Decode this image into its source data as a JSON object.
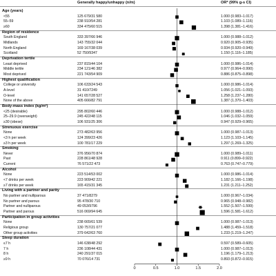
{
  "header": {
    "counts": "Generally happy/unhappy (n/m)",
    "or": "OR* (99% g-s CI)"
  },
  "chart_data": {
    "type": "forest",
    "x_ticks": [
      "0",
      "0.5",
      "1.0",
      "1.5",
      "2.0"
    ],
    "xlim": [
      0,
      2
    ],
    "reference_line": 1,
    "rows": [
      {
        "kind": "section",
        "label": "Age (years)"
      },
      {
        "kind": "row",
        "label": "<55",
        "counts": "125 679/31 580",
        "or_text": "1.000 (0.983–1.017)",
        "or": 1.0,
        "lo": 0.983,
        "hi": 1.017
      },
      {
        "kind": "row",
        "label": "55–59",
        "counts": "238 910/54 281",
        "or_text": "1.103 (1.089–1.116)",
        "or": 1.103,
        "lo": 1.089,
        "hi": 1.116
      },
      {
        "kind": "row",
        "label": "≥60",
        "counts": "334 475/60 515",
        "or_text": "1.398 (1.381–1.416)",
        "or": 1.398,
        "lo": 1.381,
        "hi": 1.416
      },
      {
        "kind": "section",
        "label": "Region of residence"
      },
      {
        "kind": "row",
        "label": "South England",
        "counts": "333 397/66 946",
        "or_text": "1.000 (0.988–1.012)",
        "or": 1.0,
        "lo": 0.988,
        "hi": 1.012
      },
      {
        "kind": "row",
        "label": "Midlands",
        "counts": "143 755/32 044",
        "or_text": "0.920 (0.905–0.935)",
        "or": 0.92,
        "lo": 0.905,
        "hi": 0.935
      },
      {
        "kind": "row",
        "label": "North England",
        "counts": "169 167/38 039",
        "or_text": "0.934 (0.920–0.949)",
        "or": 0.934,
        "lo": 0.92,
        "hi": 0.949
      },
      {
        "kind": "row",
        "label": "Scotland",
        "counts": "52 750/9347",
        "or_text": "1.150 (1.116–1.185)",
        "or": 1.15,
        "lo": 1.116,
        "hi": 1.185
      },
      {
        "kind": "section",
        "label": "Deprivation tertile"
      },
      {
        "kind": "row",
        "label": "Least deprived",
        "counts": "237 815/44 104",
        "or_text": "1.000 (0.986–1.014)",
        "or": 1.0,
        "lo": 0.986,
        "hi": 1.014
      },
      {
        "kind": "row",
        "label": "Middle tertile",
        "counts": "234 121/46 382",
        "or_text": "0.977 (0.964–0.990)",
        "or": 0.977,
        "lo": 0.964,
        "hi": 0.99
      },
      {
        "kind": "row",
        "label": "Most deprived",
        "counts": "221 743/54 909",
        "or_text": "0.886 (0.875–0.898)",
        "or": 0.886,
        "lo": 0.875,
        "hi": 0.898
      },
      {
        "kind": "section",
        "label": "Highest qualification"
      },
      {
        "kind": "row",
        "label": "College or university",
        "counts": "106 633/24 543",
        "or_text": "1.000 (0.986–1.014)",
        "or": 1.0,
        "lo": 0.986,
        "hi": 1.014
      },
      {
        "kind": "row",
        "label": "A-level",
        "counts": "31 410/7249",
        "or_text": "1.056 (1.021–1.093)",
        "or": 1.056,
        "lo": 1.021,
        "hi": 1.093
      },
      {
        "kind": "row",
        "label": "O-level",
        "counts": "141 657/28 527",
        "or_text": "1.258 (1.237–1.280)",
        "or": 1.258,
        "lo": 1.237,
        "hi": 1.28
      },
      {
        "kind": "row",
        "label": "None of the above",
        "counts": "405 666/82 791",
        "or_text": "1.387 (1.370–1.403)",
        "or": 1.387,
        "lo": 1.37,
        "hi": 1.403
      },
      {
        "kind": "section",
        "label": "Body-mass index (kg/m²)"
      },
      {
        "kind": "row",
        "label": "<25 (desirable)",
        "counts": "295 802/60 446",
        "or_text": "1.000 (0.988–1.012)",
        "or": 1.0,
        "lo": 0.988,
        "hi": 1.012
      },
      {
        "kind": "row",
        "label": "25–29.9 (overweight)",
        "counts": "245 422/48 115",
        "or_text": "1.046 (1.032–1.059)",
        "or": 1.046,
        "lo": 1.032,
        "hi": 1.059
      },
      {
        "kind": "row",
        "label": "≥30 (obese)",
        "counts": "106 931/25 306",
        "or_text": "0.947 (0.929–0.965)",
        "or": 0.947,
        "lo": 0.929,
        "hi": 0.965
      },
      {
        "kind": "section",
        "label": "Strenuous exercise"
      },
      {
        "kind": "row",
        "label": "None",
        "counts": "273 482/63 956",
        "or_text": "1.000 (0.987–1.013)",
        "or": 1.0,
        "lo": 0.987,
        "hi": 1.013
      },
      {
        "kind": "row",
        "label": "<3 h per week",
        "counts": "124 399/23 426",
        "or_text": "1.123 (1.103–1.145)",
        "or": 1.123,
        "lo": 1.103,
        "hi": 1.145
      },
      {
        "kind": "row",
        "label": "≥3 h per week",
        "counts": "100 781/17 229",
        "or_text": "1.297 (1.269–1.325)",
        "or": 1.297,
        "lo": 1.269,
        "hi": 1.325
      },
      {
        "kind": "section",
        "label": "Smoking"
      },
      {
        "kind": "row",
        "label": "Never",
        "counts": "376 956/70 874",
        "or_text": "1.000 (0.989–1.011)",
        "or": 1.0,
        "lo": 0.989,
        "hi": 1.011
      },
      {
        "kind": "row",
        "label": "Past",
        "counts": "228 861/48 928",
        "or_text": "0.911 (0.899–0.922)",
        "or": 0.911,
        "lo": 0.899,
        "hi": 0.922
      },
      {
        "kind": "row",
        "label": "Current",
        "counts": "76 571/22 473",
        "or_text": "0.763 (0.747–0.779)",
        "or": 0.763,
        "lo": 0.747,
        "hi": 0.779
      },
      {
        "kind": "section",
        "label": "Alcohol"
      },
      {
        "kind": "row",
        "label": "None",
        "counts": "223 514/53 002",
        "or_text": "1.000 (0.986–1.014)",
        "or": 1.0,
        "lo": 0.986,
        "hi": 1.014
      },
      {
        "kind": "row",
        "label": "<7 drinks per week",
        "counts": "223 909/42 221",
        "or_text": "1.182 (1.166–1.198)",
        "or": 1.182,
        "lo": 1.166,
        "hi": 1.198
      },
      {
        "kind": "row",
        "label": "≥7 drinks per week",
        "counts": "165 415/31 345",
        "or_text": "1.231 (1.211–1.252)",
        "or": 1.231,
        "lo": 1.211,
        "hi": 1.252
      },
      {
        "kind": "section",
        "label": "Living with a partner and parity"
      },
      {
        "kind": "row",
        "label": "No partner and nulliparous",
        "counts": "37 471/8279",
        "or_text": "1.000 (0.967–1.034)",
        "or": 1.0,
        "lo": 0.967,
        "hi": 1.034
      },
      {
        "kind": "row",
        "label": "No partner and parous",
        "counts": "95 478/30 710",
        "or_text": "0.965 (0.948–0.982)",
        "or": 0.965,
        "lo": 0.948,
        "hi": 0.982
      },
      {
        "kind": "row",
        "label": "Partner and nulliparous",
        "counts": "49 053/9796",
        "or_text": "1.552 (1.507–1.599)",
        "or": 1.552,
        "lo": 1.507,
        "hi": 1.599
      },
      {
        "kind": "row",
        "label": "Partner and parous",
        "counts": "516 069/94 645",
        "or_text": "1.596 (1.581–1.612)",
        "or": 1.596,
        "lo": 1.581,
        "hi": 1.612
      },
      {
        "kind": "section",
        "label": "Participation in group activities"
      },
      {
        "kind": "row",
        "label": "None",
        "counts": "238 665/61 539",
        "or_text": "1.000 (0.987–1.013)",
        "or": 1.0,
        "lo": 0.987,
        "hi": 1.013
      },
      {
        "kind": "row",
        "label": "Religious group",
        "counts": "130 757/21 077",
        "or_text": "1.488 (1.459–1.518)",
        "or": 1.488,
        "lo": 1.459,
        "hi": 1.518
      },
      {
        "kind": "row",
        "label": "Other group activities",
        "counts": "379 642/63 760",
        "or_text": "1.233 (1.219–1.247)",
        "or": 1.233,
        "lo": 1.219,
        "hi": 1.247
      },
      {
        "kind": "section",
        "label": "Sleep duration"
      },
      {
        "kind": "row",
        "label": "≤7 h",
        "counts": "146 638/48 292",
        "or_text": "0.597 (0.589–0.605)",
        "or": 0.597,
        "lo": 0.589,
        "hi": 0.605
      },
      {
        "kind": "row",
        "label": "7 h",
        "counts": "236 108/44 431",
        "or_text": "1.000 (0.987–1.013)",
        "or": 1.0,
        "lo": 0.987,
        "hi": 1.013
      },
      {
        "kind": "row",
        "label": "8 h",
        "counts": "240 291/37 015",
        "or_text": "1.196 (1.179–1.213)",
        "or": 1.196,
        "lo": 1.179,
        "hi": 1.213
      },
      {
        "kind": "row",
        "label": "≥9 h",
        "counts": "70 076/14 731",
        "or_text": "0.893 (0.872–0.915)",
        "or": 0.893,
        "lo": 0.872,
        "hi": 0.915
      }
    ]
  }
}
